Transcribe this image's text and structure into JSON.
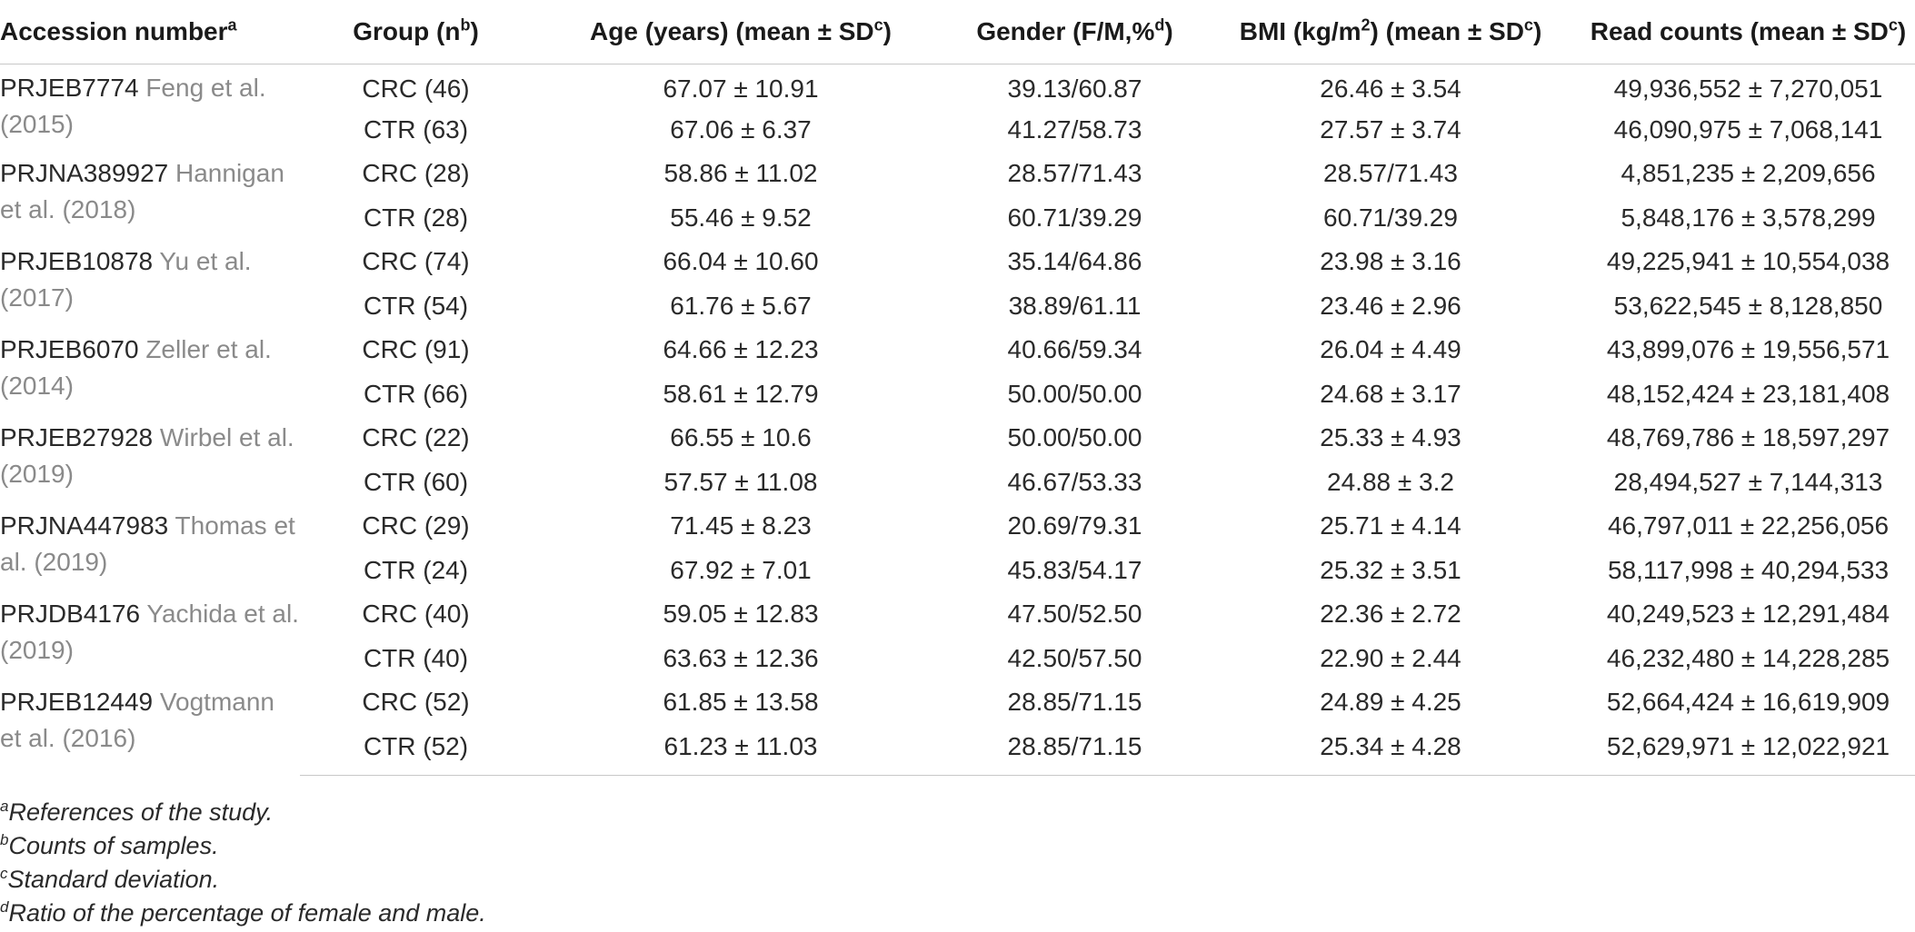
{
  "headers": {
    "accession": "Accession number",
    "accession_sup": "a",
    "group": "Group (n",
    "group_sup": "b",
    "group_end": ")",
    "age": "Age (years) (mean ± SD",
    "age_sup": "c",
    "age_end": ")",
    "gender": "Gender (F/M,%",
    "gender_sup": "d",
    "gender_end": ")",
    "bmi_pre": "BMI (kg/m",
    "bmi_sup": "2",
    "bmi_post": ") (mean ± SD",
    "bmi_sup2": "c",
    "bmi_end": ")",
    "reads": "Read counts (mean ± SD",
    "reads_sup": "c",
    "reads_end": ")"
  },
  "studies": [
    {
      "id": "PRJEB7774",
      "cite": "Feng et al. (2015)",
      "rows": [
        {
          "group": "CRC (46)",
          "age": "67.07 ± 10.91",
          "gender": "39.13/60.87",
          "bmi": "26.46 ± 3.54",
          "reads": "49,936,552 ± 7,270,051"
        },
        {
          "group": "CTR (63)",
          "age": "67.06 ± 6.37",
          "gender": "41.27/58.73",
          "bmi": "27.57 ± 3.74",
          "reads": "46,090,975 ± 7,068,141"
        }
      ]
    },
    {
      "id": "PRJNA389927",
      "cite": "Hannigan et al. (2018)",
      "rows": [
        {
          "group": "CRC (28)",
          "age": "58.86 ± 11.02",
          "gender": "28.57/71.43",
          "bmi": "28.57/71.43",
          "reads": "4,851,235 ± 2,209,656"
        },
        {
          "group": "CTR (28)",
          "age": "55.46 ± 9.52",
          "gender": "60.71/39.29",
          "bmi": "60.71/39.29",
          "reads": "5,848,176 ± 3,578,299"
        }
      ]
    },
    {
      "id": "PRJEB10878",
      "cite": "Yu et al. (2017)",
      "rows": [
        {
          "group": "CRC (74)",
          "age": "66.04 ± 10.60",
          "gender": "35.14/64.86",
          "bmi": "23.98 ± 3.16",
          "reads": "49,225,941 ± 10,554,038"
        },
        {
          "group": "CTR (54)",
          "age": "61.76 ± 5.67",
          "gender": "38.89/61.11",
          "bmi": "23.46 ± 2.96",
          "reads": "53,622,545 ± 8,128,850"
        }
      ]
    },
    {
      "id": "PRJEB6070",
      "cite": "Zeller et al. (2014)",
      "rows": [
        {
          "group": "CRC (91)",
          "age": "64.66 ± 12.23",
          "gender": "40.66/59.34",
          "bmi": "26.04 ± 4.49",
          "reads": "43,899,076 ± 19,556,571"
        },
        {
          "group": "CTR (66)",
          "age": "58.61 ± 12.79",
          "gender": "50.00/50.00",
          "bmi": "24.68 ± 3.17",
          "reads": "48,152,424 ± 23,181,408"
        }
      ]
    },
    {
      "id": "PRJEB27928",
      "cite": "Wirbel et al. (2019)",
      "rows": [
        {
          "group": "CRC (22)",
          "age": "66.55 ± 10.6",
          "gender": "50.00/50.00",
          "bmi": "25.33 ± 4.93",
          "reads": "48,769,786 ± 18,597,297"
        },
        {
          "group": "CTR (60)",
          "age": "57.57 ± 11.08",
          "gender": "46.67/53.33",
          "bmi": "24.88 ± 3.2",
          "reads": "28,494,527 ± 7,144,313"
        }
      ]
    },
    {
      "id": "PRJNA447983",
      "cite": "Thomas et al. (2019)",
      "rows": [
        {
          "group": "CRC (29)",
          "age": "71.45 ± 8.23",
          "gender": "20.69/79.31",
          "bmi": "25.71 ± 4.14",
          "reads": "46,797,011 ± 22,256,056"
        },
        {
          "group": "CTR (24)",
          "age": "67.92 ± 7.01",
          "gender": "45.83/54.17",
          "bmi": "25.32 ± 3.51",
          "reads": "58,117,998 ± 40,294,533"
        }
      ]
    },
    {
      "id": "PRJDB4176",
      "cite": "Yachida et al. (2019)",
      "rows": [
        {
          "group": "CRC (40)",
          "age": "59.05 ± 12.83",
          "gender": "47.50/52.50",
          "bmi": "22.36 ± 2.72",
          "reads": "40,249,523 ± 12,291,484"
        },
        {
          "group": "CTR (40)",
          "age": "63.63 ± 12.36",
          "gender": "42.50/57.50",
          "bmi": "22.90 ± 2.44",
          "reads": "46,232,480 ± 14,228,285"
        }
      ]
    },
    {
      "id": "PRJEB12449",
      "cite": "Vogtmann et al. (2016)",
      "rows": [
        {
          "group": "CRC (52)",
          "age": "61.85 ± 13.58",
          "gender": "28.85/71.15",
          "bmi": "24.89 ± 4.25",
          "reads": "52,664,424 ± 16,619,909"
        },
        {
          "group": "CTR (52)",
          "age": "61.23 ± 11.03",
          "gender": "28.85/71.15",
          "bmi": "25.34 ± 4.28",
          "reads": "52,629,971 ± 12,022,921"
        }
      ]
    }
  ],
  "footnotes": [
    {
      "mark": "a",
      "text": "References of the study."
    },
    {
      "mark": "b",
      "text": "Counts of samples."
    },
    {
      "mark": "c",
      "text": "Standard deviation."
    },
    {
      "mark": "d",
      "text": "Ratio of the percentage of female and male."
    }
  ]
}
